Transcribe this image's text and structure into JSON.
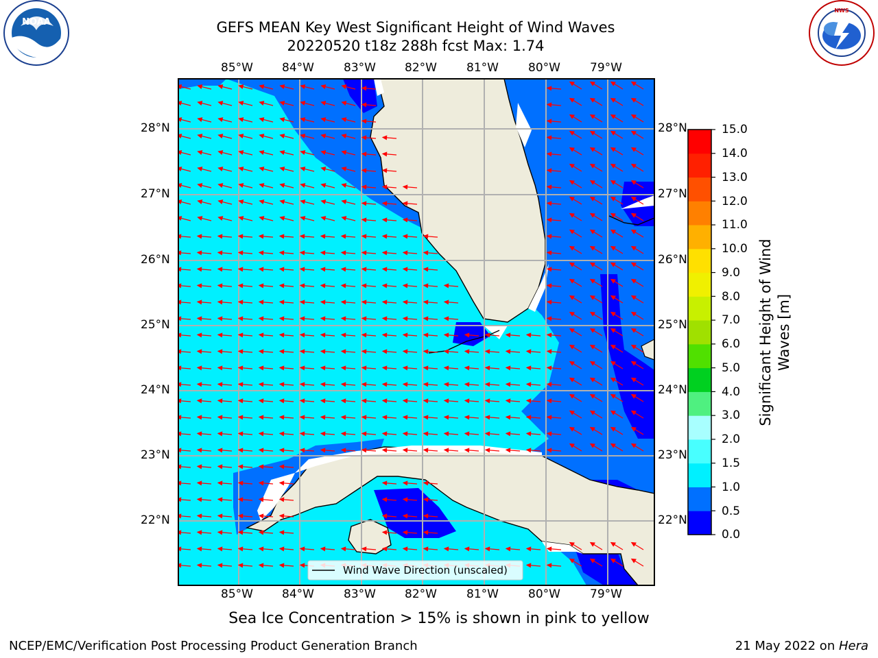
{
  "header": {
    "title_line1": "GEFS MEAN Key West Significant Height of Wind Waves",
    "title_line2": "20220520 t18z 288h fcst   Max: 1.74"
  },
  "logos": {
    "left": {
      "icon": "noaa-logo",
      "text": "NOAA",
      "ring_text": "NATIONAL OCEANIC AND ATMOSPHERIC ADMINISTRATION · U.S. DEPARTMENT OF COMMERCE"
    },
    "right": {
      "icon": "nws-logo",
      "ring_text": "NATIONAL WEATHER SERVICE"
    }
  },
  "map": {
    "lon_labels": [
      "85°W",
      "84°W",
      "83°W",
      "82°W",
      "81°W",
      "80°W",
      "79°W"
    ],
    "lat_labels": [
      "28°N",
      "27°N",
      "26°N",
      "25°N",
      "24°N",
      "23°N",
      "22°N"
    ],
    "legend_label": "Wind Wave Direction (unscaled)",
    "colors": {
      "land": "#eeecdc",
      "coast": "#000000",
      "grid": "#b0b0b0",
      "arrows": "#ff0000"
    }
  },
  "colorbar": {
    "label": "Significant Height of Wind Waves [m]",
    "label_line1": "Significant Height of Wind",
    "label_line2": "Waves [m]",
    "ticks": [
      "15.0",
      "14.0",
      "13.0",
      "12.0",
      "11.0",
      "10.0",
      "9.0",
      "8.0",
      "7.0",
      "6.0",
      "5.0",
      "4.0",
      "3.0",
      "2.0",
      "1.5",
      "1.0",
      "0.5",
      "0.0"
    ],
    "colors_bottom_to_top": [
      "#0000ff",
      "#0070ff",
      "#00f0ff",
      "#48ffff",
      "#a8ffff",
      "#4ff080",
      "#00d020",
      "#50e000",
      "#a0e000",
      "#c8f000",
      "#f0f000",
      "#ffe000",
      "#ffb000",
      "#ff8000",
      "#ff5000",
      "#ff2000",
      "#ff0000"
    ]
  },
  "notes": {
    "sea_ice": "Sea Ice Concentration > 15% is shown in pink to yellow"
  },
  "footer": {
    "left": "NCEP/EMC/Verification Post Processing Product Generation Branch",
    "right_prefix": "21 May 2022 on ",
    "right_machine": "Hera"
  }
}
